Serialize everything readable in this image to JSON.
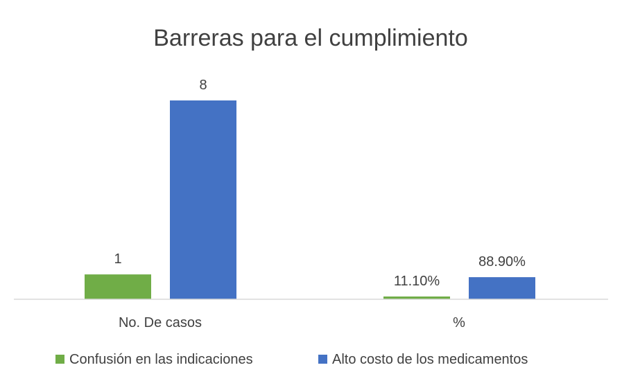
{
  "chart_data": {
    "type": "bar",
    "title": "Barreras para el cumplimiento",
    "categories": [
      "No. De casos",
      "%"
    ],
    "series": [
      {
        "name": "Confusión en las indicaciones",
        "color": "#70AD47",
        "values": [
          1,
          0.111
        ],
        "labels": [
          "1",
          "11.10%"
        ]
      },
      {
        "name": "Alto costo de los medicamentos",
        "color": "#4472C4",
        "values": [
          8,
          0.889
        ],
        "labels": [
          "8",
          "88.90%"
        ]
      }
    ],
    "ylim": [
      0,
      9
    ],
    "grid": false,
    "legend_position": "bottom"
  }
}
